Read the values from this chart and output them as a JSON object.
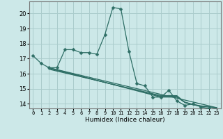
{
  "title": "",
  "xlabel": "Humidex (Indice chaleur)",
  "ylabel": "",
  "background_color": "#cce8e8",
  "grid_color": "#aacccc",
  "line_color": "#2e6e65",
  "xlim": [
    -0.5,
    23.5
  ],
  "ylim": [
    13.7,
    20.8
  ],
  "xticks": [
    0,
    1,
    2,
    3,
    4,
    5,
    6,
    7,
    8,
    9,
    10,
    11,
    12,
    13,
    14,
    15,
    16,
    17,
    18,
    19,
    20,
    21,
    22,
    23
  ],
  "yticks": [
    14,
    15,
    16,
    17,
    18,
    19,
    20
  ],
  "series0_x": [
    0,
    1,
    2,
    3,
    4,
    5,
    6,
    7,
    8,
    9,
    10,
    11,
    12,
    13,
    14,
    15,
    16,
    17,
    18,
    19,
    20,
    21,
    22
  ],
  "series0_y": [
    17.2,
    16.7,
    16.4,
    16.4,
    17.6,
    17.6,
    17.4,
    17.4,
    17.3,
    18.6,
    20.4,
    20.3,
    17.5,
    15.35,
    15.2,
    14.45,
    14.45,
    14.9,
    14.2,
    13.9,
    14.0,
    13.8,
    13.7
  ],
  "series1_x": [
    2,
    23
  ],
  "series1_y": [
    16.4,
    13.75
  ],
  "series2_x": [
    2,
    16,
    17,
    18,
    19,
    20,
    21,
    22,
    23
  ],
  "series2_y": [
    16.4,
    14.45,
    14.45,
    14.45,
    14.1,
    13.95,
    13.85,
    13.8,
    13.72
  ],
  "series3_x": [
    2,
    16,
    17,
    18,
    19,
    20,
    21,
    22,
    23
  ],
  "series3_y": [
    16.35,
    14.5,
    14.5,
    14.5,
    14.1,
    13.95,
    13.85,
    13.8,
    13.72
  ],
  "series4_x": [
    2,
    16,
    17,
    18,
    19,
    20,
    21,
    22,
    23
  ],
  "series4_y": [
    16.3,
    14.55,
    14.55,
    14.55,
    14.12,
    13.97,
    13.87,
    13.82,
    13.74
  ],
  "marker_size": 2.5,
  "line_width": 0.9
}
